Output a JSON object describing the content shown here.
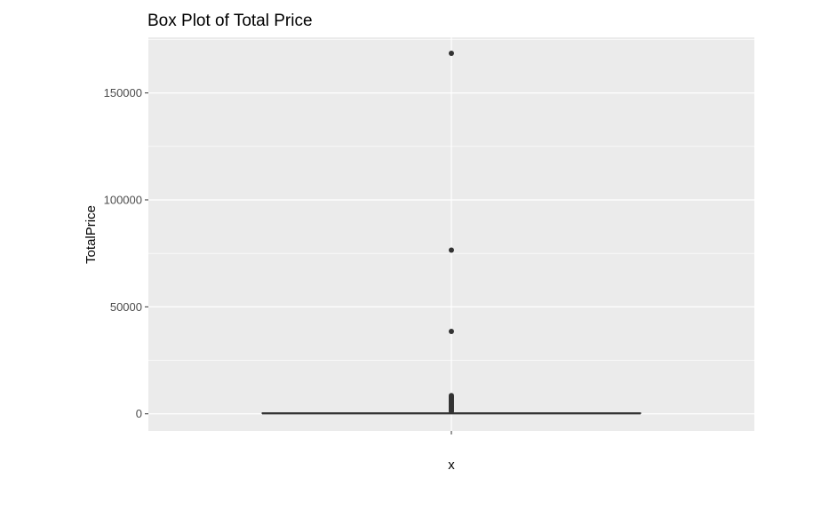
{
  "chart_data": {
    "type": "box",
    "title": "Box Plot of Total Price",
    "xlabel": "x",
    "ylabel": "TotalPrice",
    "ylim": [
      -8000,
      176000
    ],
    "y_ticks": [
      0,
      50000,
      100000,
      150000
    ],
    "y_tick_labels": [
      "0",
      "50000",
      "100000",
      "150000"
    ],
    "x_ticks": [
      ""
    ],
    "grid": true,
    "background": "#EBEBEB",
    "gridline_color": "#FFFFFF",
    "box_color": "#333333",
    "box": {
      "min": 0,
      "q1": 100,
      "median": 200,
      "q3": 450,
      "max": 1000
    },
    "outliers": [
      168500,
      76500,
      38500,
      8500,
      8000,
      7500,
      7000,
      6500,
      6000,
      5500,
      5000,
      4500,
      4000,
      3500,
      3000,
      2500,
      2000,
      1500,
      1200
    ]
  }
}
